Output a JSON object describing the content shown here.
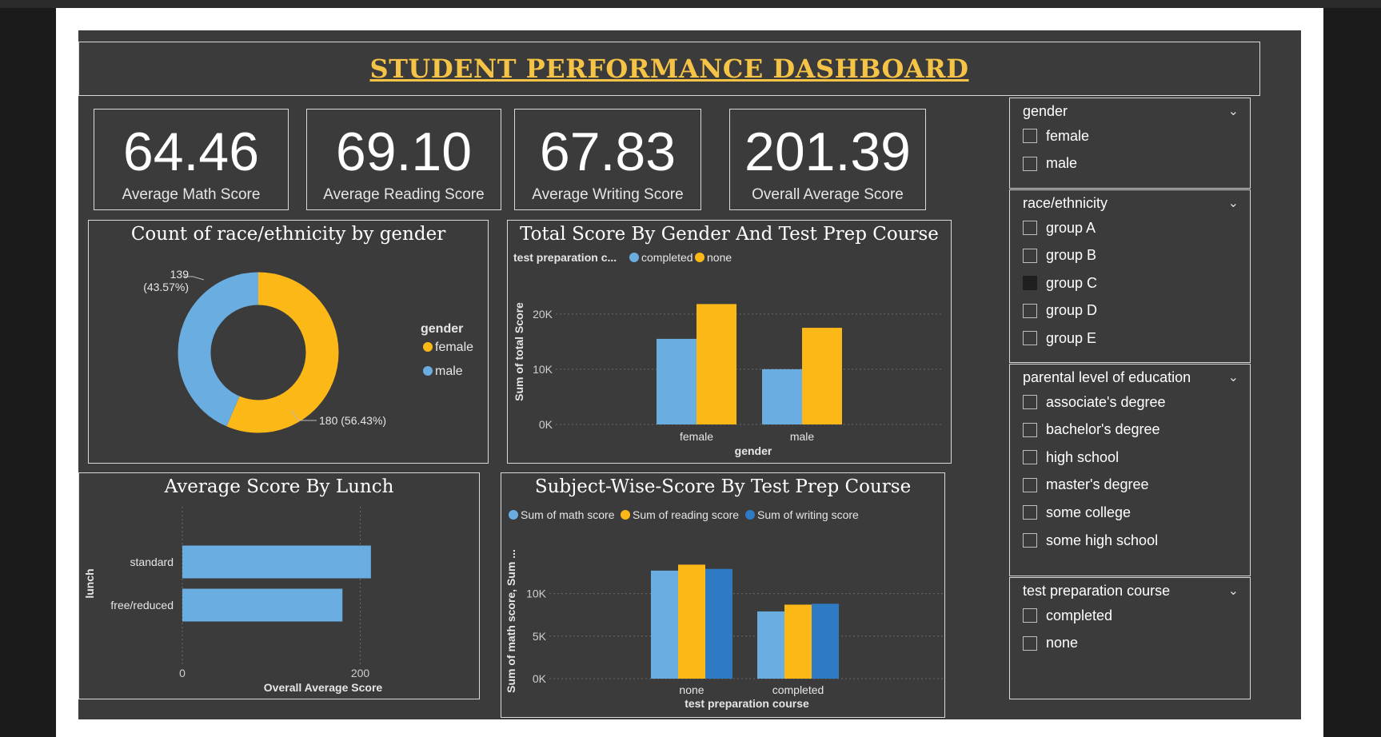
{
  "dashboard": {
    "title": "STUDENT PERFORMANCE DASHBOARD"
  },
  "colors": {
    "completed": "#6aade0",
    "none": "#fcb817",
    "math": "#6aade0",
    "reading": "#fcb817",
    "writing": "#2e7bc4",
    "background": "#3b3b3b"
  },
  "kpis": [
    {
      "value": "64.46",
      "label": "Average Math Score"
    },
    {
      "value": "69.10",
      "label": "Average Reading Score"
    },
    {
      "value": "67.83",
      "label": "Average Writing Score"
    },
    {
      "value": "201.39",
      "label": "Overall Average Score"
    }
  ],
  "slicers": {
    "gender": {
      "title": "gender",
      "items": [
        {
          "label": "female",
          "selected": false
        },
        {
          "label": "male",
          "selected": false
        }
      ]
    },
    "race": {
      "title": "race/ethnicity",
      "items": [
        {
          "label": "group A",
          "selected": false
        },
        {
          "label": "group B",
          "selected": false
        },
        {
          "label": "group C",
          "selected": true
        },
        {
          "label": "group D",
          "selected": false
        },
        {
          "label": "group E",
          "selected": false
        }
      ]
    },
    "education": {
      "title": "parental level of education",
      "items": [
        {
          "label": "associate's degree",
          "selected": false
        },
        {
          "label": "bachelor's degree",
          "selected": false
        },
        {
          "label": "high school",
          "selected": false
        },
        {
          "label": "master's degree",
          "selected": false
        },
        {
          "label": "some college",
          "selected": false
        },
        {
          "label": "some high school",
          "selected": false
        }
      ]
    },
    "prep": {
      "title": "test preparation course",
      "items": [
        {
          "label": "completed",
          "selected": false
        },
        {
          "label": "none",
          "selected": false
        }
      ]
    }
  },
  "chart_data": [
    {
      "type": "pie",
      "title": "Count of race/ethnicity by gender",
      "legend_title": "gender",
      "legend_position": "right",
      "slices": [
        {
          "name": "female",
          "value": 180,
          "label": "180 (56.43%)"
        },
        {
          "name": "male",
          "value": 139,
          "label_line1": "139",
          "label_line2": "(43.57%)"
        }
      ]
    },
    {
      "type": "bar",
      "title": "Total Score By Gender And Test Prep Course",
      "legend_title": "test preparation c...",
      "legend_position": "top-left",
      "categories": [
        "female",
        "male"
      ],
      "series": [
        {
          "name": "completed",
          "values": [
            15500,
            10000
          ]
        },
        {
          "name": "none",
          "values": [
            21800,
            17500
          ]
        }
      ],
      "xlabel": "gender",
      "ylabel": "Sum of total Score",
      "ylim": [
        0,
        22000
      ],
      "yticks": [
        {
          "v": 0,
          "label": "0K"
        },
        {
          "v": 10000,
          "label": "10K"
        },
        {
          "v": 20000,
          "label": "20K"
        }
      ],
      "grid": true
    },
    {
      "type": "bar",
      "orientation": "horizontal",
      "title": "Average Score By Lunch",
      "categories": [
        "standard",
        "free/reduced"
      ],
      "values": [
        212,
        180
      ],
      "xlabel": "Overall Average Score",
      "ylabel": "lunch",
      "xlim": [
        0,
        240
      ],
      "xticks": [
        {
          "v": 0,
          "label": "0"
        },
        {
          "v": 200,
          "label": "200"
        }
      ],
      "grid": true
    },
    {
      "type": "bar",
      "title": "Subject-Wise-Score By Test Prep Course",
      "legend_position": "top-left",
      "categories": [
        "none",
        "completed"
      ],
      "series": [
        {
          "name": "Sum of math score",
          "values": [
            12700,
            7900
          ]
        },
        {
          "name": "Sum of reading score",
          "values": [
            13400,
            8700
          ]
        },
        {
          "name": "Sum of writing score",
          "values": [
            12900,
            8800
          ]
        }
      ],
      "xlabel": "test preparation course",
      "ylabel": "Sum of math score, Sum ...",
      "ylim": [
        0,
        14000
      ],
      "yticks": [
        {
          "v": 0,
          "label": "0K"
        },
        {
          "v": 5000,
          "label": "5K"
        },
        {
          "v": 10000,
          "label": "10K"
        }
      ],
      "grid": true
    }
  ]
}
